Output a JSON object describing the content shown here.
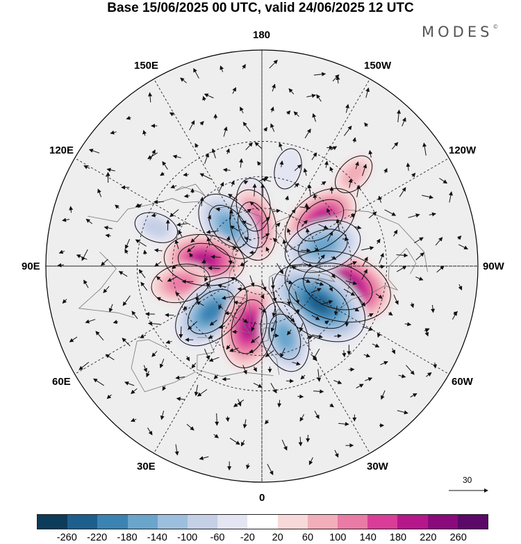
{
  "title": "Base 15/06/2025 00 UTC, valid 24/06/2025 12 UTC",
  "brand": "MODES",
  "brand_mark": "©",
  "longitude_labels": [
    {
      "text": "180",
      "lon": 180
    },
    {
      "text": "150E",
      "lon": 150
    },
    {
      "text": "120E",
      "lon": 120
    },
    {
      "text": "90E",
      "lon": 90
    },
    {
      "text": "60E",
      "lon": 60
    },
    {
      "text": "30E",
      "lon": 30
    },
    {
      "text": "0",
      "lon": 0
    },
    {
      "text": "30W",
      "lon": -30
    },
    {
      "text": "60W",
      "lon": -60
    },
    {
      "text": "90W",
      "lon": -90
    },
    {
      "text": "120W",
      "lon": -120
    },
    {
      "text": "150W",
      "lon": -150
    }
  ],
  "reference_vector": "30",
  "colorbar": {
    "labels": [
      "-260",
      "-220",
      "-180",
      "-140",
      "-100",
      "-60",
      "-20",
      "20",
      "60",
      "100",
      "140",
      "180",
      "220",
      "260"
    ],
    "colors": [
      "#0d3b5a",
      "#1c5f8d",
      "#3b83b3",
      "#6aa5cc",
      "#9dbfde",
      "#c5cfe6",
      "#e4e5f2",
      "#ffffff",
      "#f8d9da",
      "#f2aeb9",
      "#ea7aa6",
      "#d93d98",
      "#b5178b",
      "#8a0a7c",
      "#5c0868"
    ]
  },
  "anomaly_centers": [
    {
      "lat": 50,
      "lon": -75,
      "value": 250
    },
    {
      "lat": 55,
      "lon": -57,
      "value": -230
    },
    {
      "lat": 52,
      "lon": -128,
      "value": 160
    },
    {
      "lat": 57,
      "lon": -108,
      "value": -150
    },
    {
      "lat": 58,
      "lon": 172,
      "value": -70
    },
    {
      "lat": 68,
      "lon": 168,
      "value": 130
    },
    {
      "lat": 63,
      "lon": 140,
      "value": -140
    },
    {
      "lat": 60,
      "lon": 96,
      "value": 160
    },
    {
      "lat": 48,
      "lon": 78,
      "value": 90
    },
    {
      "lat": 55,
      "lon": 48,
      "value": -170
    },
    {
      "lat": 58,
      "lon": 12,
      "value": 170
    },
    {
      "lat": 52,
      "lon": -18,
      "value": -130
    },
    {
      "lat": 28,
      "lon": -135,
      "value": 40
    },
    {
      "lat": 35,
      "lon": 110,
      "value": -40
    },
    {
      "lat": 40,
      "lon": -165,
      "value": -30
    }
  ]
}
